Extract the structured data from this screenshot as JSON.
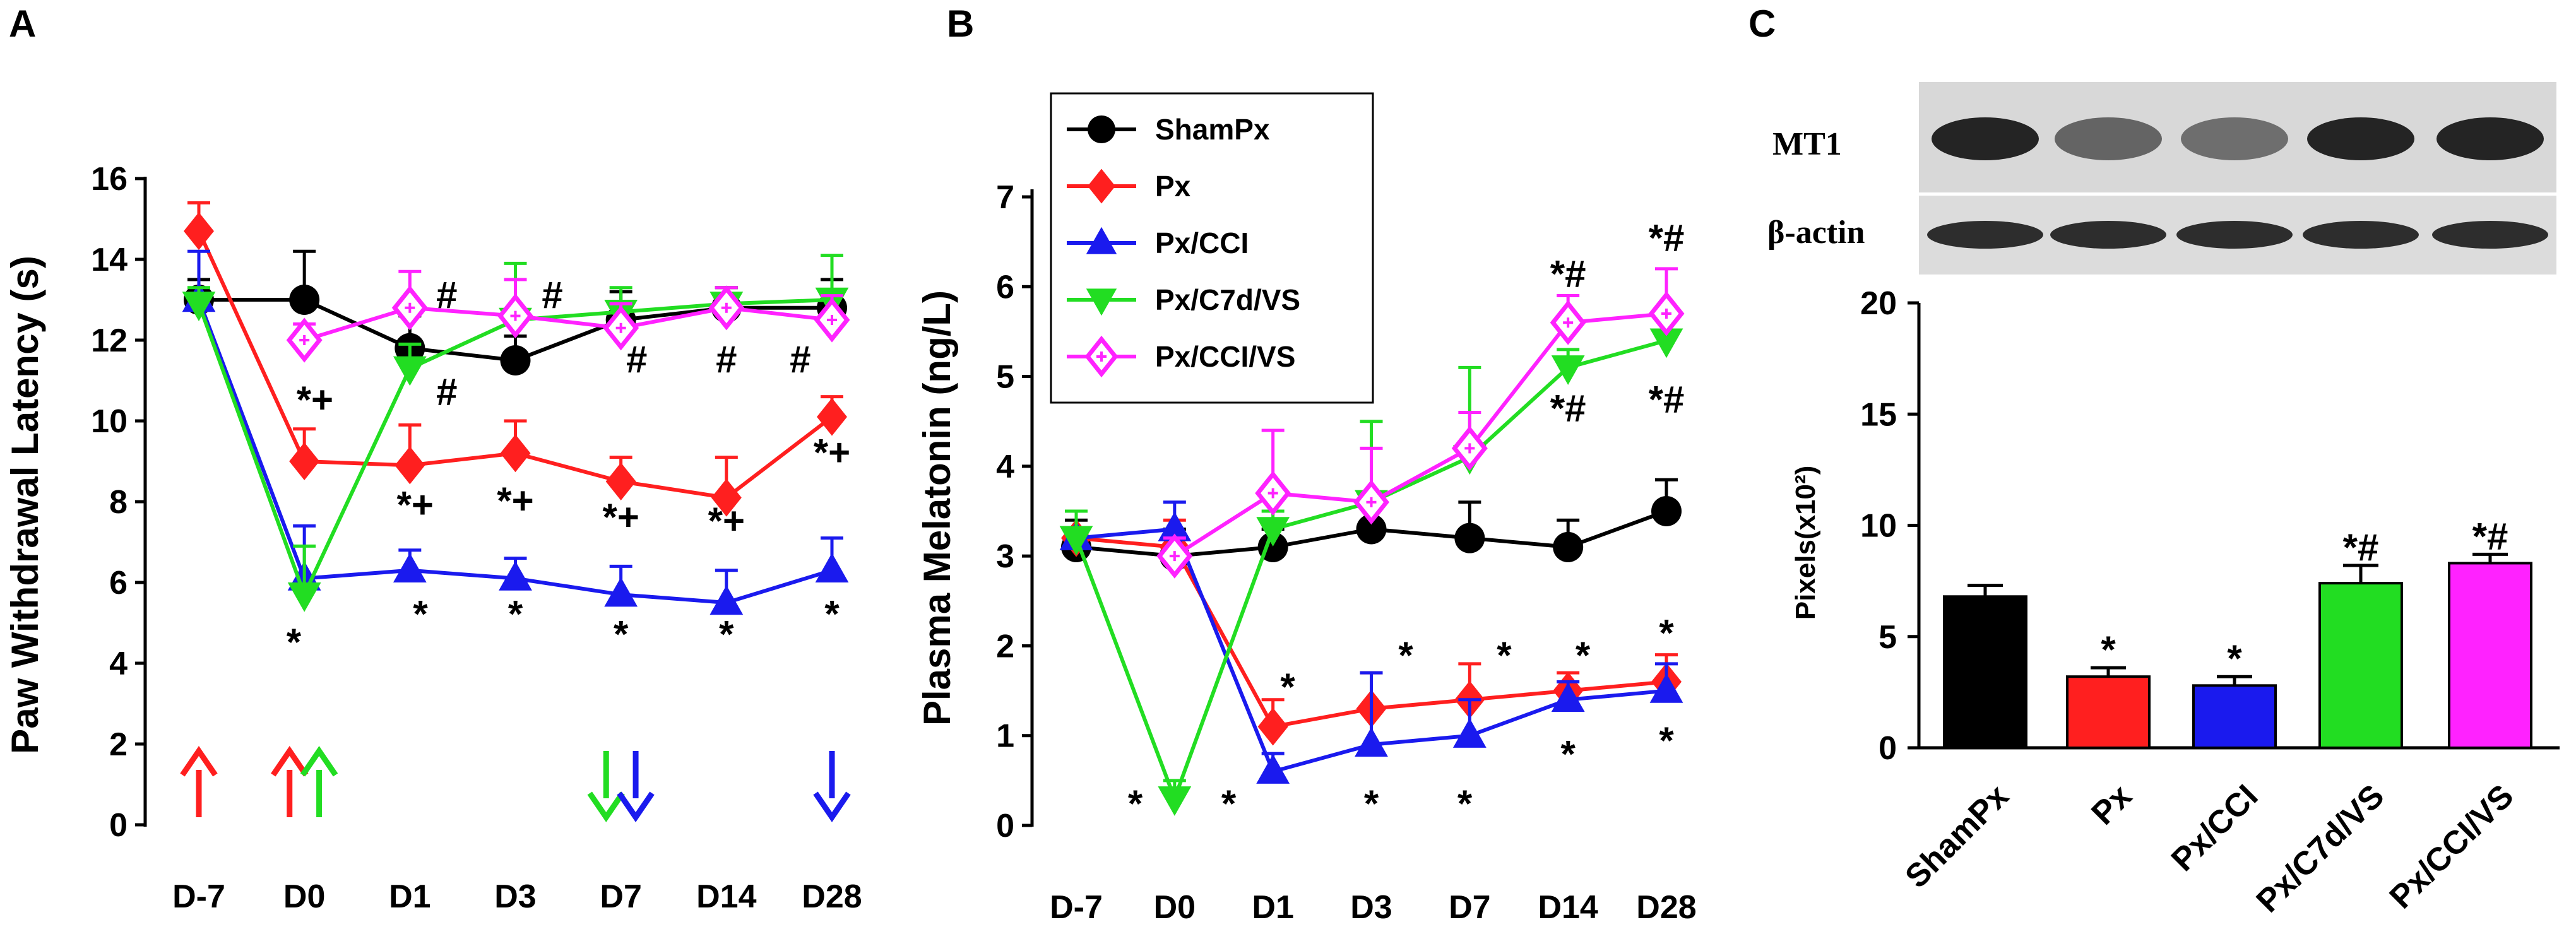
{
  "panel_labels": [
    "A",
    "B",
    "C"
  ],
  "colors": {
    "ShamPx": "#000000",
    "Px": "#ff1f1f",
    "Px/CCI": "#1a1aee",
    "Px/C7d/VS": "#22dd22",
    "Px/CCI/VS": "#ff22ff"
  },
  "chart_data": [
    {
      "type": "line",
      "panel": "A",
      "ylabel": "Paw Withdrawal Latency (s)",
      "xlabel": "",
      "categories": [
        "D-7",
        "D0",
        "D1",
        "D3",
        "D7",
        "D14",
        "D28"
      ],
      "ylim": [
        0,
        16
      ],
      "yticks": [
        0,
        2,
        4,
        6,
        8,
        10,
        12,
        14,
        16
      ],
      "series": [
        {
          "name": "ShamPx",
          "marker": "circle",
          "values": [
            13.0,
            13.0,
            11.8,
            11.5,
            12.5,
            12.8,
            12.8
          ],
          "errors": [
            0.5,
            1.2,
            0.8,
            0.6,
            0.7,
            0.5,
            0.7
          ]
        },
        {
          "name": "Px",
          "marker": "diamond",
          "values": [
            14.7,
            9.0,
            8.9,
            9.2,
            8.5,
            8.1,
            10.1
          ],
          "errors": [
            0.7,
            0.8,
            1.0,
            0.8,
            0.6,
            1.0,
            0.5
          ]
        },
        {
          "name": "Px/CCI",
          "marker": "triangle-up",
          "values": [
            13.0,
            6.1,
            6.3,
            6.1,
            5.7,
            5.5,
            6.3
          ],
          "errors": [
            1.2,
            1.3,
            0.5,
            0.5,
            0.7,
            0.8,
            0.8
          ]
        },
        {
          "name": "Px/C7d/VS",
          "marker": "triangle-down",
          "values": [
            12.9,
            5.7,
            11.3,
            12.5,
            12.7,
            12.9,
            13.0
          ],
          "errors": [
            0.4,
            1.2,
            0.6,
            1.4,
            0.6,
            0.4,
            1.1
          ]
        },
        {
          "name": "Px/CCI/VS",
          "marker": "diamond-open",
          "values": [
            null,
            12.0,
            12.8,
            12.6,
            12.3,
            12.8,
            12.5
          ],
          "errors": [
            null,
            0.4,
            0.9,
            0.9,
            0.6,
            0.5,
            0.6
          ]
        }
      ],
      "arrows": [
        {
          "category": "D-7",
          "offset": 0,
          "color": "Px",
          "direction": "up"
        },
        {
          "category": "D0",
          "offset": -0.14,
          "color": "Px",
          "direction": "up"
        },
        {
          "category": "D0",
          "offset": 0.14,
          "color": "Px/C7d/VS",
          "direction": "up"
        },
        {
          "category": "D7",
          "offset": -0.14,
          "color": "Px/C7d/VS",
          "direction": "down"
        },
        {
          "category": "D7",
          "offset": 0.14,
          "color": "Px/CCI",
          "direction": "down"
        },
        {
          "category": "D28",
          "offset": 0,
          "color": "Px/CCI",
          "direction": "down"
        }
      ],
      "annotations": [
        {
          "text": "*+",
          "category": "D0",
          "y": 10.2,
          "dx": 0.1
        },
        {
          "text": "*",
          "category": "D0",
          "y": 4.2,
          "dx": -0.1
        },
        {
          "text": "#",
          "category": "D1",
          "y": 12.8,
          "dx": 0.35
        },
        {
          "text": "#",
          "category": "D1",
          "y": 10.4,
          "dx": 0.35
        },
        {
          "text": "*+",
          "category": "D1",
          "y": 7.6,
          "dx": 0.05
        },
        {
          "text": "*",
          "category": "D1",
          "y": 4.9,
          "dx": 0.1
        },
        {
          "text": "#",
          "category": "D3",
          "y": 12.8,
          "dx": 0.35
        },
        {
          "text": "*+",
          "category": "D3",
          "y": 7.7,
          "dx": 0.0
        },
        {
          "text": "*",
          "category": "D3",
          "y": 4.9,
          "dx": 0.0
        },
        {
          "text": "#",
          "category": "D7",
          "y": 11.2,
          "dx": 0.15
        },
        {
          "text": "*+",
          "category": "D7",
          "y": 7.3,
          "dx": 0.0
        },
        {
          "text": "*",
          "category": "D7",
          "y": 4.4,
          "dx": 0.0
        },
        {
          "text": "#",
          "category": "D14",
          "y": 11.2,
          "dx": 0.0
        },
        {
          "text": "*+",
          "category": "D14",
          "y": 7.2,
          "dx": 0.0
        },
        {
          "text": "*",
          "category": "D14",
          "y": 4.4,
          "dx": 0.0
        },
        {
          "text": "#",
          "category": "D28",
          "y": 11.2,
          "dx": -0.3
        },
        {
          "text": "*+",
          "category": "D28",
          "y": 8.9,
          "dx": 0.0
        },
        {
          "text": "*",
          "category": "D28",
          "y": 4.9,
          "dx": 0.0
        }
      ]
    },
    {
      "type": "line",
      "panel": "B",
      "ylabel": "Plasma Melatonin (ng/L)",
      "xlabel": "",
      "categories": [
        "D-7",
        "D0",
        "D1",
        "D3",
        "D7",
        "D14",
        "D28"
      ],
      "ylim": [
        0,
        7
      ],
      "yticks": [
        0,
        1,
        2,
        3,
        4,
        5,
        6,
        7
      ],
      "legend": [
        "ShamPx",
        "Px",
        "Px/CCI",
        "Px/C7d/VS",
        "Px/CCI/VS"
      ],
      "series": [
        {
          "name": "ShamPx",
          "marker": "circle",
          "values": [
            3.1,
            3.0,
            3.1,
            3.3,
            3.2,
            3.1,
            3.5
          ],
          "errors": [
            0.3,
            0.3,
            0.2,
            0.3,
            0.4,
            0.3,
            0.35
          ]
        },
        {
          "name": "Px",
          "marker": "diamond",
          "values": [
            3.2,
            3.1,
            1.1,
            1.3,
            1.4,
            1.5,
            1.6
          ],
          "errors": [
            0.3,
            0.3,
            0.3,
            0.4,
            0.4,
            0.2,
            0.3
          ]
        },
        {
          "name": "Px/CCI",
          "marker": "triangle-up",
          "values": [
            3.2,
            3.3,
            0.6,
            0.9,
            1.0,
            1.4,
            1.5
          ],
          "errors": [
            0.3,
            0.3,
            0.2,
            0.8,
            0.4,
            0.2,
            0.3
          ]
        },
        {
          "name": "Px/C7d/VS",
          "marker": "triangle-down",
          "values": [
            3.2,
            0.3,
            3.3,
            3.6,
            4.1,
            5.1,
            5.4
          ],
          "errors": [
            0.3,
            0.2,
            0.2,
            0.9,
            1.0,
            0.2,
            0.3
          ]
        },
        {
          "name": "Px/CCI/VS",
          "marker": "diamond-open",
          "values": [
            null,
            3.0,
            3.7,
            3.6,
            4.2,
            5.6,
            5.7
          ],
          "errors": [
            null,
            0.2,
            0.7,
            0.6,
            0.4,
            0.3,
            0.5
          ]
        }
      ],
      "annotations": [
        {
          "text": "*#",
          "category": "D28",
          "y": 6.4,
          "dx": 0.0
        },
        {
          "text": "*#",
          "category": "D14",
          "y": 6.0,
          "dx": 0.0
        },
        {
          "text": "*#",
          "category": "D14",
          "y": 4.5,
          "dx": 0.0
        },
        {
          "text": "*#",
          "category": "D28",
          "y": 4.6,
          "dx": 0.0
        },
        {
          "text": "*",
          "category": "D1",
          "y": 1.4,
          "dx": 0.15
        },
        {
          "text": "*",
          "category": "D3",
          "y": 1.75,
          "dx": 0.35
        },
        {
          "text": "*",
          "category": "D7",
          "y": 1.75,
          "dx": 0.35
        },
        {
          "text": "*",
          "category": "D14",
          "y": 1.75,
          "dx": 0.15
        },
        {
          "text": "*",
          "category": "D28",
          "y": 2.0,
          "dx": 0.0
        },
        {
          "text": "*",
          "category": "D-7",
          "y": 0.1,
          "dx": 0.6
        },
        {
          "text": "*",
          "category": "D0",
          "y": 0.1,
          "dx": 0.55
        },
        {
          "text": "*",
          "category": "D3",
          "y": 0.1,
          "dx": 0.0
        },
        {
          "text": "*",
          "category": "D7",
          "y": 0.1,
          "dx": -0.05
        },
        {
          "text": "*",
          "category": "D14",
          "y": 0.65,
          "dx": 0.0
        },
        {
          "text": "*",
          "category": "D28",
          "y": 0.8,
          "dx": 0.0
        }
      ]
    },
    {
      "type": "bar",
      "panel": "C",
      "ylabel": "Pixels(x10²)",
      "xlabel": "",
      "categories": [
        "ShamPx",
        "Px",
        "Px/CCI",
        "Px/C7d/VS",
        "Px/CCI/VS"
      ],
      "values": [
        6.8,
        3.2,
        2.8,
        7.4,
        8.3
      ],
      "errors": [
        0.5,
        0.4,
        0.4,
        0.8,
        0.4
      ],
      "ylim": [
        0,
        20
      ],
      "yticks": [
        0,
        5,
        10,
        15,
        20
      ],
      "annotations": [
        "",
        "*",
        "*",
        "*#",
        "*#"
      ],
      "blot_labels": [
        "MT1",
        "β-actin"
      ]
    }
  ]
}
